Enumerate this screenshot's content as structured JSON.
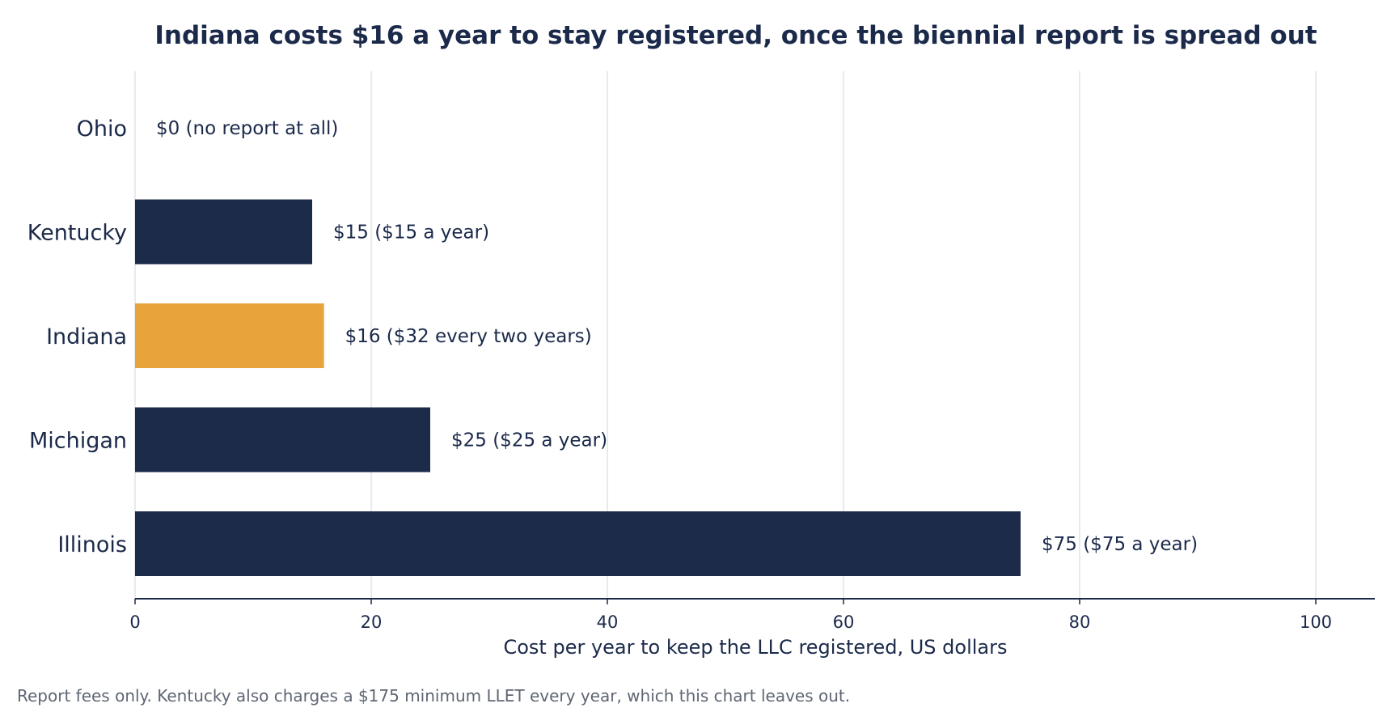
{
  "chart_data": {
    "type": "bar",
    "orientation": "horizontal",
    "title": "Indiana costs $16 a year to stay registered, once the biennial report is spread out",
    "xlabel": "Cost per year to keep the LLC registered, US dollars",
    "ylabel": "",
    "xlim": [
      0,
      105
    ],
    "xticks": [
      0,
      20,
      40,
      60,
      80,
      100
    ],
    "grid": "vertical",
    "categories": [
      "Ohio",
      "Kentucky",
      "Indiana",
      "Michigan",
      "Illinois"
    ],
    "values": [
      0,
      15,
      16,
      25,
      75
    ],
    "data_labels": [
      "$0   (no report at all)",
      "$15   ($15 a year)",
      "$16   ($32 every two years)",
      "$25   ($25 a year)",
      "$75   ($75 a year)"
    ],
    "highlight_category": "Indiana",
    "colors": {
      "default": "#1c2b4a",
      "highlight": "#e8a33a",
      "grid": "#e1e4ea",
      "text": "#1b2a4a",
      "note": "#5f6673"
    },
    "footnote": "Report fees only. Kentucky also charges a $175 minimum LLET every year, which this chart leaves out."
  }
}
